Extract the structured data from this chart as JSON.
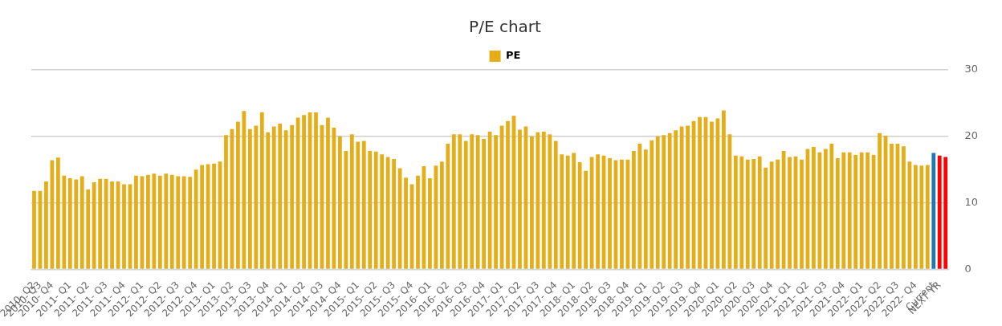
{
  "chart_data": {
    "type": "bar",
    "title": "P/E chart",
    "categories": [
      "2010- Q2",
      "2010- Q3",
      null,
      "2010- Q4",
      null,
      null,
      "2011- Q1",
      null,
      null,
      "2011- Q2",
      null,
      null,
      "2011- Q3",
      null,
      null,
      "2011- Q4",
      null,
      null,
      "2012- Q1",
      null,
      null,
      "2012- Q2",
      null,
      null,
      "2012- Q3",
      null,
      null,
      "2012- Q4",
      null,
      null,
      "2013- Q1",
      null,
      null,
      "2013- Q2",
      null,
      null,
      "2013- Q3",
      null,
      null,
      "2013- Q4",
      null,
      null,
      "2014- Q1",
      null,
      null,
      "2014- Q2",
      null,
      null,
      "2014- Q3",
      null,
      null,
      "2014- Q4",
      null,
      null,
      "2015- Q1",
      null,
      null,
      "2015- Q2",
      null,
      null,
      "2015- Q3",
      null,
      null,
      "2015- Q4",
      null,
      null,
      "2016- Q1",
      null,
      null,
      "2016- Q2",
      null,
      null,
      "2016- Q3",
      null,
      null,
      "2016- Q4",
      null,
      null,
      "2017- Q1",
      null,
      null,
      "2017- Q2",
      null,
      null,
      "2017- Q3",
      null,
      null,
      "2017- Q4",
      null,
      null,
      "2018- Q1",
      null,
      null,
      "2018- Q2",
      null,
      null,
      "2018- Q3",
      null,
      null,
      "2018- Q4",
      null,
      null,
      "2019- Q1",
      null,
      null,
      "2019- Q2",
      null,
      null,
      "2019- Q3",
      null,
      null,
      "2019- Q4",
      null,
      null,
      "2020- Q1",
      null,
      null,
      "2020- Q2",
      null,
      null,
      "2020- Q3",
      null,
      null,
      "2020- Q4",
      null,
      null,
      "2021- Q1",
      null,
      null,
      "2021- Q2",
      null,
      null,
      "2021- Q3",
      null,
      null,
      "2021- Q4",
      null,
      null,
      "2022- Q1",
      null,
      null,
      "2022- Q2",
      null,
      null,
      "2022- Q3",
      null,
      null,
      "2022- Q4",
      null,
      null,
      "Current",
      "NEXT YR",
      null
    ],
    "series": [
      {
        "name": "PE",
        "color": "#e5ad17",
        "colors": [
          "#e5ad17",
          "#e5ad17",
          "#e5ad17",
          "#e5ad17",
          "#e5ad17",
          "#e5ad17",
          "#e5ad17",
          "#e5ad17",
          "#e5ad17",
          "#e5ad17",
          "#e5ad17",
          "#e5ad17",
          "#e5ad17",
          "#e5ad17",
          "#e5ad17",
          "#e5ad17",
          "#e5ad17",
          "#e5ad17",
          "#e5ad17",
          "#e5ad17",
          "#e5ad17",
          "#e5ad17",
          "#e5ad17",
          "#e5ad17",
          "#e5ad17",
          "#e5ad17",
          "#e5ad17",
          "#e5ad17",
          "#e5ad17",
          "#e5ad17",
          "#e5ad17",
          "#e5ad17",
          "#e5ad17",
          "#e5ad17",
          "#e5ad17",
          "#e5ad17",
          "#e5ad17",
          "#e5ad17",
          "#e5ad17",
          "#e5ad17",
          "#e5ad17",
          "#e5ad17",
          "#e5ad17",
          "#e5ad17",
          "#e5ad17",
          "#e5ad17",
          "#e5ad17",
          "#e5ad17",
          "#e5ad17",
          "#e5ad17",
          "#e5ad17",
          "#e5ad17",
          "#e5ad17",
          "#e5ad17",
          "#e5ad17",
          "#e5ad17",
          "#e5ad17",
          "#e5ad17",
          "#e5ad17",
          "#e5ad17",
          "#e5ad17",
          "#e5ad17",
          "#e5ad17",
          "#e5ad17",
          "#e5ad17",
          "#e5ad17",
          "#e5ad17",
          "#e5ad17",
          "#e5ad17",
          "#e5ad17",
          "#e5ad17",
          "#e5ad17",
          "#e5ad17",
          "#e5ad17",
          "#e5ad17",
          "#e5ad17",
          "#e5ad17",
          "#e5ad17",
          "#e5ad17",
          "#e5ad17",
          "#e5ad17",
          "#e5ad17",
          "#e5ad17",
          "#e5ad17",
          "#e5ad17",
          "#e5ad17",
          "#e5ad17",
          "#e5ad17",
          "#e5ad17",
          "#e5ad17",
          "#e5ad17",
          "#e5ad17",
          "#e5ad17",
          "#e5ad17",
          "#e5ad17",
          "#e5ad17",
          "#e5ad17",
          "#e5ad17",
          "#e5ad17",
          "#e5ad17",
          "#e5ad17",
          "#e5ad17",
          "#e5ad17",
          "#e5ad17",
          "#e5ad17",
          "#e5ad17",
          "#e5ad17",
          "#e5ad17",
          "#e5ad17",
          "#e5ad17",
          "#e5ad17",
          "#e5ad17",
          "#e5ad17",
          "#e5ad17",
          "#e5ad17",
          "#e5ad17",
          "#e5ad17",
          "#e5ad17",
          "#e5ad17",
          "#e5ad17",
          "#e5ad17",
          "#e5ad17",
          "#e5ad17",
          "#e5ad17",
          "#e5ad17",
          "#e5ad17",
          "#e5ad17",
          "#e5ad17",
          "#e5ad17",
          "#e5ad17",
          "#e5ad17",
          "#e5ad17",
          "#e5ad17",
          "#e5ad17",
          "#e5ad17",
          "#e5ad17",
          "#e5ad17",
          "#e5ad17",
          "#e5ad17",
          "#e5ad17",
          "#e5ad17",
          "#e5ad17",
          "#e5ad17",
          "#e5ad17",
          "#e5ad17",
          "#e5ad17",
          "#e5ad17",
          "#e5ad17",
          "#e5ad17",
          "#e5ad17",
          "#1f77b4",
          "#ff0000",
          "#ff0000"
        ],
        "values": [
          11.8,
          11.8,
          13.2,
          16.4,
          16.8,
          14.1,
          13.7,
          13.5,
          14.0,
          12.0,
          13.1,
          13.6,
          13.6,
          13.2,
          13.2,
          12.8,
          12.8,
          14.1,
          14.0,
          14.2,
          14.4,
          14.1,
          14.4,
          14.2,
          14.0,
          14.0,
          13.9,
          15.0,
          15.7,
          15.8,
          15.9,
          16.2,
          20.2,
          21.1,
          22.2,
          23.8,
          21.1,
          21.6,
          23.6,
          20.6,
          21.5,
          21.9,
          20.9,
          21.7,
          22.8,
          23.2,
          23.6,
          23.6,
          21.7,
          22.8,
          21.3,
          20.0,
          17.8,
          20.3,
          19.2,
          19.3,
          17.8,
          17.7,
          17.3,
          16.9,
          16.6,
          15.2,
          13.8,
          12.8,
          14.1,
          15.5,
          13.7,
          15.6,
          16.2,
          18.9,
          20.3,
          20.3,
          19.3,
          20.3,
          20.2,
          19.6,
          20.7,
          20.2,
          21.6,
          22.3,
          23.1,
          21.0,
          21.5,
          20.0,
          20.6,
          20.7,
          20.3,
          19.3,
          17.3,
          17.1,
          17.5,
          16.1,
          14.8,
          16.9,
          17.3,
          17.1,
          16.7,
          16.4,
          16.5,
          16.5,
          17.8,
          18.9,
          18.0,
          19.4,
          20.0,
          20.2,
          20.5,
          20.9,
          21.5,
          21.6,
          22.3,
          22.9,
          22.9,
          22.2,
          22.7,
          23.9,
          20.3,
          17.1,
          17.0,
          16.5,
          16.6,
          17.0,
          15.3,
          16.2,
          16.5,
          17.8,
          16.9,
          17.0,
          16.5,
          18.1,
          18.4,
          17.6,
          18.1,
          18.9,
          16.7,
          17.6,
          17.6,
          17.2,
          17.6,
          17.6,
          17.2,
          20.5,
          20.1,
          18.9,
          18.9,
          18.5,
          16.2,
          15.7,
          15.6,
          15.7,
          17.5,
          17.1,
          16.9
        ]
      }
    ],
    "ylim": [
      0,
      30
    ],
    "yticks": [
      0,
      10,
      20,
      30
    ],
    "grid": "y",
    "legend": "top"
  }
}
